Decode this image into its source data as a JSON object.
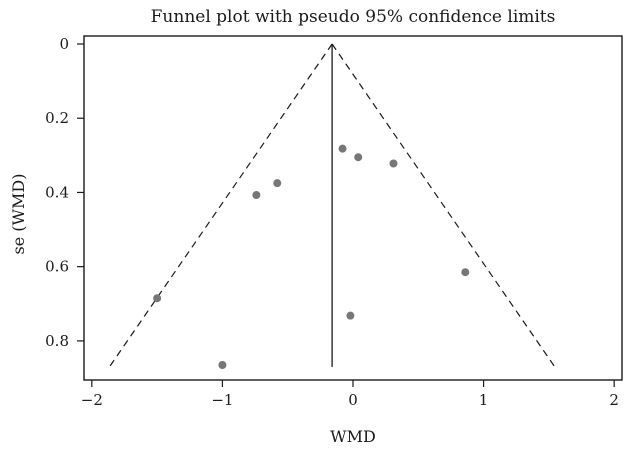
{
  "chart_data": {
    "type": "scatter",
    "title": "Funnel plot with pseudo 95% confidence limits",
    "xlabel": "WMD",
    "ylabel": "se (WMD)",
    "xlim": [
      -2.06,
      2.06
    ],
    "ylim": [
      0,
      0.9
    ],
    "y_inverted": true,
    "xticks": [
      -2,
      -1,
      0,
      1,
      2
    ],
    "xtick_labels": [
      "−2",
      "−1",
      "0",
      "1",
      "2"
    ],
    "yticks": [
      0,
      0.2,
      0.4,
      0.6,
      0.8
    ],
    "ytick_labels": [
      "0",
      "0.2",
      "0.4",
      "0.6",
      "0.8"
    ],
    "grid": false,
    "pooled_estimate": -0.16,
    "confidence_limit_se_max": 0.87,
    "colors": {
      "points": "#777777",
      "lines": "#1a1a1a"
    },
    "points": [
      {
        "x": -1.5,
        "y": 0.685
      },
      {
        "x": -1.0,
        "y": 0.865
      },
      {
        "x": -0.74,
        "y": 0.407
      },
      {
        "x": -0.58,
        "y": 0.375
      },
      {
        "x": -0.08,
        "y": 0.282
      },
      {
        "x": 0.04,
        "y": 0.305
      },
      {
        "x": 0.31,
        "y": 0.322
      },
      {
        "x": -0.02,
        "y": 0.732
      },
      {
        "x": 0.86,
        "y": 0.615
      }
    ]
  }
}
